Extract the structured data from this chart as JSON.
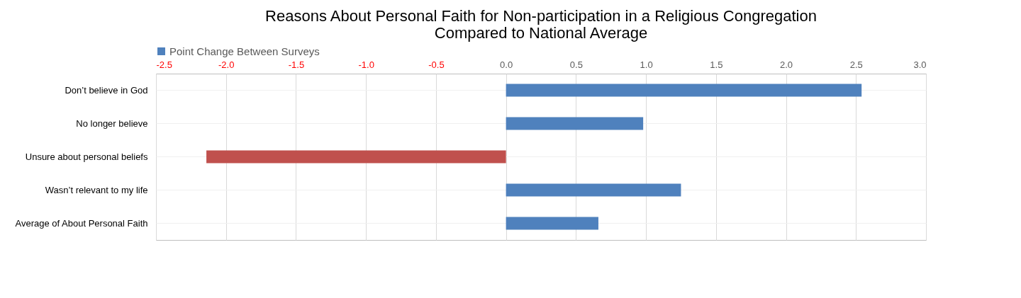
{
  "chart_data": {
    "type": "bar",
    "orientation": "horizontal",
    "title": "Reasons About Personal Faith for Non-participation in a Religious Congregation\nCompared to National Average",
    "categories": [
      "Don’t believe in God",
      "No longer believe",
      "Unsure about personal beliefs",
      "Wasn’t relevant to my life",
      "Average of About Personal Faith"
    ],
    "series": [
      {
        "name": "Point Change Between Surveys",
        "color": "#4f81bd",
        "colors": [
          "#4f81bd",
          "#4f81bd",
          "#c0504d",
          "#4f81bd",
          "#4f81bd"
        ],
        "values": [
          2.54,
          0.98,
          -2.14,
          1.25,
          0.66
        ]
      }
    ],
    "xlim": [
      -2.5,
      3.0
    ],
    "xticks": [
      {
        "value": -2.5,
        "label": "-2.5"
      },
      {
        "value": -2,
        "label": "-2.0"
      },
      {
        "value": -1.5,
        "label": "-1.5"
      },
      {
        "value": -1,
        "label": "-1.0"
      },
      {
        "value": -0.5,
        "label": "-0.5"
      },
      {
        "value": 0,
        "label": "0.0"
      },
      {
        "value": 0.5,
        "label": "0.5"
      },
      {
        "value": 1,
        "label": "1.0"
      },
      {
        "value": 1.5,
        "label": "1.5"
      },
      {
        "value": 2,
        "label": "2.0"
      },
      {
        "value": 2.5,
        "label": "2.5"
      },
      {
        "value": 3,
        "label": "3.0"
      }
    ],
    "grid": true,
    "legend": "top"
  }
}
